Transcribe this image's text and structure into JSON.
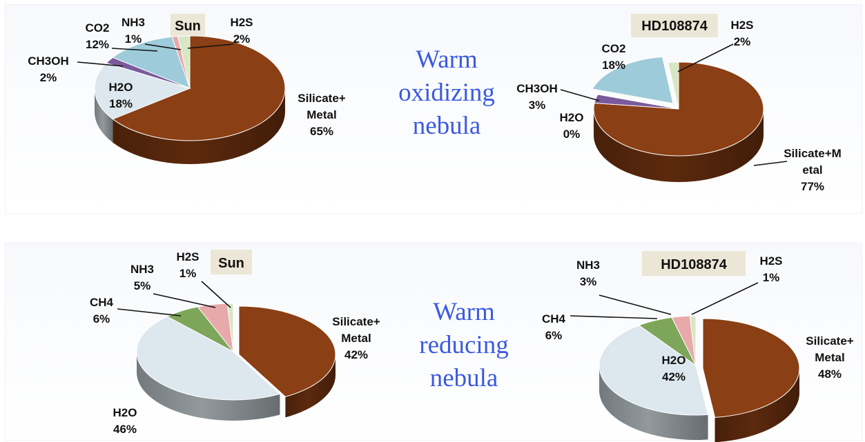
{
  "colors": {
    "Silicate+Metal": "#8b3f14",
    "H2O": "#dde8ee",
    "CO2": "#9ecbd9",
    "CH3OH": "#7a5a9c",
    "NH3": "#e8a9aa",
    "H2S": "#d7e7c4",
    "CH4": "#7ea65a"
  },
  "chart_data": [
    {
      "type": "pie",
      "title": "Sun",
      "group": "Warm oxidizing nebula",
      "slices": [
        {
          "name": "Silicate+Metal",
          "value": 65,
          "label_lines": [
            "Silicate+",
            "Metal",
            "65%"
          ]
        },
        {
          "name": "H2O",
          "value": 18,
          "label_lines": [
            "H2O",
            "18%"
          ]
        },
        {
          "name": "CH3OH",
          "value": 2,
          "label_lines": [
            "CH3OH",
            "2%"
          ]
        },
        {
          "name": "CO2",
          "value": 12,
          "label_lines": [
            "CO2",
            "12%"
          ]
        },
        {
          "name": "NH3",
          "value": 1,
          "label_lines": [
            "NH3",
            "1%"
          ]
        },
        {
          "name": "H2S",
          "value": 2,
          "label_lines": [
            "H2S",
            "2%"
          ]
        }
      ]
    },
    {
      "type": "pie",
      "title": "HD108874",
      "group": "Warm oxidizing nebula",
      "slices": [
        {
          "name": "Silicate+Metal",
          "value": 77,
          "label_lines": [
            "Silicate+M",
            "etal",
            "77%"
          ]
        },
        {
          "name": "H2O",
          "value": 0,
          "label_lines": [
            "H2O",
            "0%"
          ]
        },
        {
          "name": "CH3OH",
          "value": 3,
          "label_lines": [
            "CH3OH",
            "3%"
          ]
        },
        {
          "name": "CO2",
          "value": 18,
          "label_lines": [
            "CO2",
            "18%"
          ]
        },
        {
          "name": "H2S",
          "value": 2,
          "label_lines": [
            "H2S",
            "2%"
          ]
        }
      ]
    },
    {
      "type": "pie",
      "title": "Sun",
      "group": "Warm reducing nebula",
      "slices": [
        {
          "name": "Silicate+Metal",
          "value": 42,
          "label_lines": [
            "Silicate+",
            "Metal",
            "42%"
          ]
        },
        {
          "name": "H2O",
          "value": 46,
          "label_lines": [
            "H2O",
            "46%"
          ]
        },
        {
          "name": "CH4",
          "value": 6,
          "label_lines": [
            "CH4",
            "6%"
          ]
        },
        {
          "name": "NH3",
          "value": 5,
          "label_lines": [
            "NH3",
            "5%"
          ]
        },
        {
          "name": "H2S",
          "value": 1,
          "label_lines": [
            "H2S",
            "1%"
          ]
        }
      ]
    },
    {
      "type": "pie",
      "title": "HD108874",
      "group": "Warm reducing nebula",
      "slices": [
        {
          "name": "Silicate+Metal",
          "value": 48,
          "label_lines": [
            "Silicate+",
            "Metal",
            "48%"
          ]
        },
        {
          "name": "H2O",
          "value": 42,
          "label_lines": [
            "H2O",
            "42%"
          ]
        },
        {
          "name": "CH4",
          "value": 6,
          "label_lines": [
            "CH4",
            "6%"
          ]
        },
        {
          "name": "NH3",
          "value": 3,
          "label_lines": [
            "NH3",
            "3%"
          ]
        },
        {
          "name": "H2S",
          "value": 1,
          "label_lines": [
            "H2S",
            "1%"
          ]
        }
      ]
    }
  ],
  "nebula_labels": [
    [
      "Warm",
      "oxidizing",
      "nebula"
    ],
    [
      "Warm",
      "reducing",
      "nebula"
    ]
  ]
}
